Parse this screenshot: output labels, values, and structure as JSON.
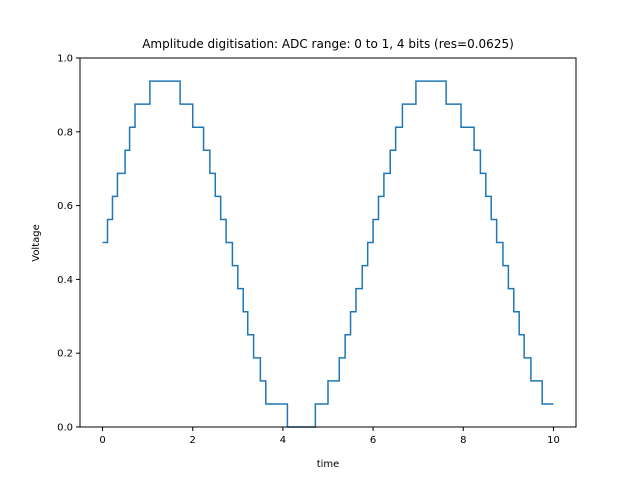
{
  "chart_data": {
    "type": "line",
    "title": "Amplitude digitisation: ADC range: 0 to 1, 4 bits (res=0.0625)",
    "xlabel": "time",
    "ylabel": "Voltage",
    "xlim": [
      -0.5,
      10.5
    ],
    "ylim": [
      0,
      1
    ],
    "xticks": [
      0,
      2,
      4,
      6,
      8,
      10
    ],
    "xtick_labels": [
      "0",
      "2",
      "4",
      "6",
      "8",
      "10"
    ],
    "yticks": [
      0,
      0.2,
      0.4,
      0.6,
      0.8,
      1.0
    ],
    "ytick_labels": [
      "0.0",
      "0.2",
      "0.4",
      "0.6",
      "0.8",
      "1.0"
    ],
    "grid": false,
    "line_color": "#1f77b4",
    "series": [
      {
        "x": [
          0,
          0.11,
          0.22,
          0.33,
          0.5,
          0.6,
          0.72,
          0.9,
          1.05,
          1.25,
          1.45,
          1.62,
          1.72,
          2.0,
          2.24,
          2.38,
          2.5,
          2.62,
          2.74,
          2.88,
          3.0,
          3.12,
          3.22,
          3.35,
          3.5,
          3.62,
          3.75,
          3.95,
          4.1,
          4.28,
          4.45,
          4.6,
          4.72,
          5.0,
          5.25,
          5.38,
          5.5,
          5.62,
          5.76,
          5.88,
          6.0,
          6.12,
          6.24,
          6.38,
          6.5,
          6.65,
          6.8,
          6.95,
          7.25,
          7.45,
          7.62,
          7.72,
          7.95,
          8.24,
          8.38,
          8.5,
          8.62,
          8.74,
          8.88,
          9.0,
          9.12,
          9.24,
          9.35,
          9.5,
          9.65,
          9.75,
          9.95,
          10.0
        ],
        "y": [
          0.5,
          0.5625,
          0.625,
          0.6875,
          0.75,
          0.8125,
          0.875,
          0.875,
          0.9375,
          0.9375,
          0.9375,
          0.9375,
          0.875,
          0.8125,
          0.75,
          0.6875,
          0.625,
          0.5625,
          0.5,
          0.4375,
          0.375,
          0.3125,
          0.25,
          0.1875,
          0.125,
          0.0625,
          0.0625,
          0.0625,
          0.0,
          0.0,
          0.0,
          0.0,
          0.0625,
          0.125,
          0.1875,
          0.25,
          0.3125,
          0.375,
          0.4375,
          0.5,
          0.5625,
          0.625,
          0.6875,
          0.75,
          0.8125,
          0.875,
          0.875,
          0.9375,
          0.9375,
          0.9375,
          0.875,
          0.875,
          0.8125,
          0.75,
          0.6875,
          0.625,
          0.5625,
          0.5,
          0.4375,
          0.375,
          0.3125,
          0.25,
          0.1875,
          0.125,
          0.125,
          0.0625,
          0.0625,
          0.0625
        ]
      }
    ]
  }
}
